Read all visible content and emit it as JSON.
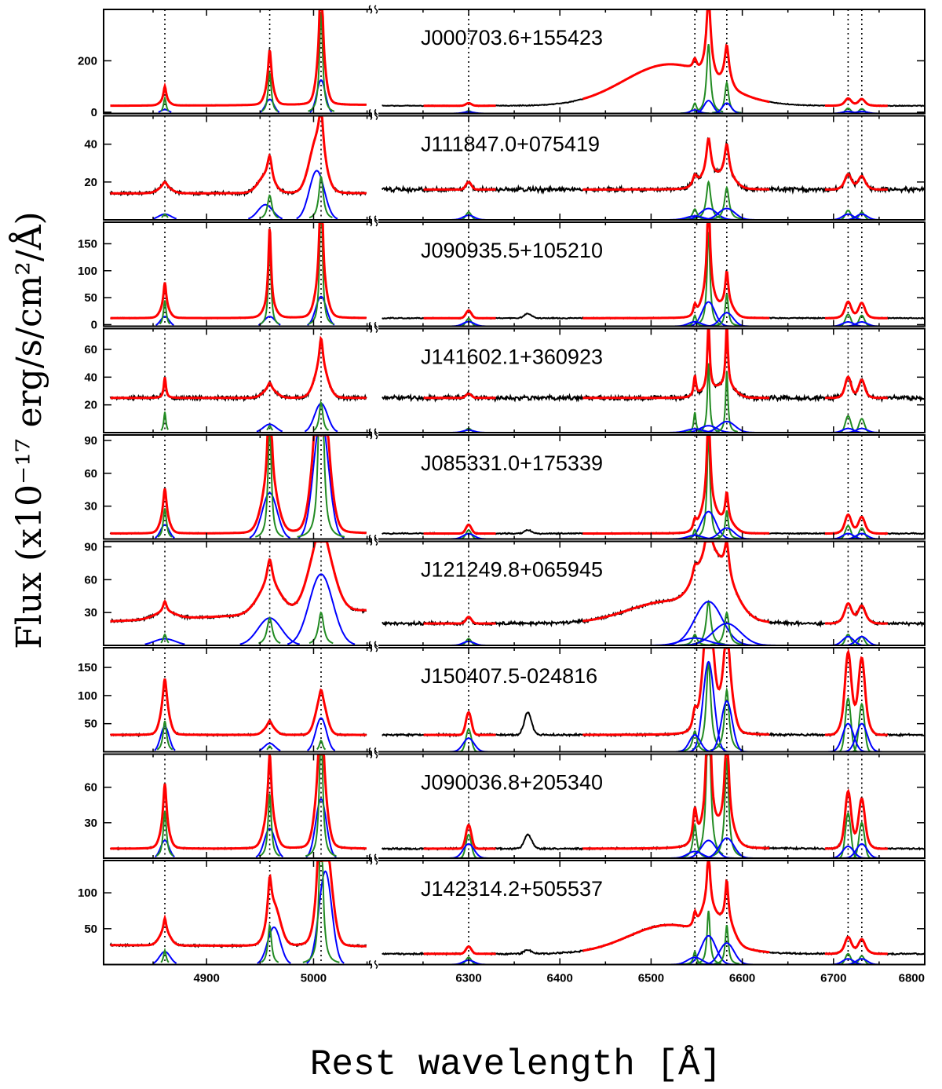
{
  "chart_data": {
    "type": "line",
    "ylabel": "Flux (x10⁻¹⁷ erg/s/cm²/Å)",
    "xlabel": "Rest wavelength [Å]",
    "x_left": {
      "range": [
        4810,
        5050
      ],
      "ticks": [
        4900,
        5000
      ]
    },
    "x_right": {
      "range": [
        6200,
        6800
      ],
      "ticks": [
        6300,
        6400,
        6500,
        6600,
        6700,
        6800
      ]
    },
    "reference_lines": [
      4861,
      4959,
      5007,
      6300,
      6548,
      6583,
      6716,
      6731
    ],
    "series_legend": [
      {
        "name": "observed",
        "color": "#000000"
      },
      {
        "name": "total fit",
        "color": "#ff0000"
      },
      {
        "name": "narrow component",
        "color": "#228b22"
      },
      {
        "name": "broad component",
        "color": "#0000ff"
      }
    ],
    "panels": [
      {
        "name": "J000703.6+155423",
        "ylim": [
          -5,
          400
        ],
        "yticks": [
          0,
          200
        ],
        "cont": [
          25,
          28
        ],
        "hb": [
          60,
          15
        ],
        "o3a": [
          160,
          55
        ],
        "o3b": [
          400,
          130
        ],
        "hbw": [
          1.5,
          4
        ],
        "o3bw": [
          1.8,
          4
        ],
        "o3off": 0,
        "rcont": 25,
        "o1": 10,
        "ha": [
          270,
          50
        ],
        "n2": [
          120,
          40
        ],
        "s2a": [
          20,
          8
        ],
        "s2b": [
          18,
          8
        ],
        "haw": [
          2.5,
          5
        ],
        "xbroad": [
          160,
          50
        ],
        "bump": 0
      },
      {
        "name": "J111847.0+075419",
        "ylim": [
          0,
          55
        ],
        "yticks": [
          20,
          40
        ],
        "cont": [
          14,
          14
        ],
        "hb": [
          3,
          3
        ],
        "o3a": [
          13,
          8
        ],
        "o3b": [
          23,
          26
        ],
        "hbw": [
          2.5,
          6
        ],
        "o3bw": [
          2.5,
          7
        ],
        "o3off": -4,
        "rcont": 16,
        "o1": 4,
        "ha": [
          20,
          6
        ],
        "n2": [
          17,
          6
        ],
        "s2a": [
          5,
          3
        ],
        "s2b": [
          4,
          3
        ],
        "haw": [
          3,
          9
        ],
        "xbroad": [
          0,
          40
        ],
        "bump": 0
      },
      {
        "name": "J090935.5+105210",
        "ylim": [
          -3,
          190
        ],
        "yticks": [
          0,
          50,
          100,
          150
        ],
        "cont": [
          12,
          12
        ],
        "hb": [
          48,
          18
        ],
        "o3a": [
          150,
          18
        ],
        "o3b": [
          260,
          55
        ],
        "hbw": [
          1.5,
          4
        ],
        "o3bw": [
          1.5,
          5
        ],
        "o3off": 0,
        "rcont": 12,
        "o1": 14,
        "ha": [
          175,
          45
        ],
        "n2": [
          60,
          25
        ],
        "s2a": [
          22,
          8
        ],
        "s2b": [
          20,
          8
        ],
        "haw": [
          2,
          7
        ],
        "xbroad": [
          0,
          40
        ],
        "bump": 8
      },
      {
        "name": "J141602.1+360923",
        "ylim": [
          0,
          75
        ],
        "yticks": [
          20,
          40,
          60
        ],
        "cont": [
          25,
          25
        ],
        "hb": [
          15,
          0
        ],
        "o3a": [
          5,
          6
        ],
        "o3b": [
          22,
          21
        ],
        "hbw": [
          1.2,
          5
        ],
        "o3bw": [
          2,
          6
        ],
        "o3off": 0,
        "rcont": 25,
        "o1": 3,
        "ha": [
          50,
          5
        ],
        "n2": [
          44,
          8
        ],
        "s2a": [
          12,
          3
        ],
        "s2b": [
          10,
          3
        ],
        "haw": [
          1.5,
          9
        ],
        "xbroad": [
          0,
          40
        ],
        "bump": 0
      },
      {
        "name": "J085331.0+175339",
        "ylim": [
          0,
          95
        ],
        "yticks": [
          30,
          60,
          90
        ],
        "cont": [
          5,
          5
        ],
        "hb": [
          28,
          13
        ],
        "o3a": [
          110,
          42
        ],
        "o3b": [
          300,
          110
        ],
        "hbw": [
          1.8,
          4
        ],
        "o3bw": [
          1.8,
          7
        ],
        "o3off": 0,
        "rcont": 5,
        "o1": 8,
        "ha": [
          95,
          25
        ],
        "n2": [
          26,
          10
        ],
        "s2a": [
          12,
          5
        ],
        "s2b": [
          10,
          5
        ],
        "haw": [
          2,
          8
        ],
        "xbroad": [
          0,
          40
        ],
        "bump": 3
      },
      {
        "name": "J121249.8+065945",
        "ylim": [
          0,
          95
        ],
        "yticks": [
          30,
          60,
          90
        ],
        "cont": [
          22,
          32
        ],
        "hb": [
          10,
          6
        ],
        "o3a": [
          25,
          25
        ],
        "o3b": [
          30,
          65
        ],
        "hbw": [
          2,
          10
        ],
        "o3bw": [
          3,
          11
        ],
        "o3off": 0,
        "rcont": 20,
        "o1": 6,
        "ha": [
          40,
          40
        ],
        "n2": [
          30,
          20
        ],
        "s2a": [
          10,
          8
        ],
        "s2b": [
          8,
          8
        ],
        "haw": [
          3,
          15
        ],
        "xbroad": [
          20,
          45
        ],
        "bump": 0
      },
      {
        "name": "J150407.5-024816",
        "ylim": [
          0,
          185
        ],
        "yticks": [
          50,
          100,
          150
        ],
        "cont": [
          30,
          30
        ],
        "hb": [
          55,
          45
        ],
        "o3a": [
          10,
          15
        ],
        "o3b": [
          20,
          60
        ],
        "hbw": [
          2,
          4
        ],
        "o3bw": [
          2,
          5
        ],
        "o3off": 0,
        "rcont": 30,
        "o1": 40,
        "ha": [
          160,
          160
        ],
        "n2": [
          110,
          90
        ],
        "s2a": [
          95,
          50
        ],
        "s2b": [
          85,
          50
        ],
        "haw": [
          3,
          6
        ],
        "xbroad": [
          0,
          40
        ],
        "bump": 40
      },
      {
        "name": "J090036.8+205340",
        "ylim": [
          0,
          88
        ],
        "yticks": [
          30,
          60
        ],
        "cont": [
          8,
          8
        ],
        "hb": [
          40,
          15
        ],
        "o3a": [
          55,
          25
        ],
        "o3b": [
          120,
          50
        ],
        "hbw": [
          1.8,
          4
        ],
        "o3bw": [
          1.8,
          5
        ],
        "o3off": 0,
        "rcont": 8,
        "o1": 20,
        "ha": [
          140,
          15
        ],
        "n2": [
          85,
          17
        ],
        "s2a": [
          38,
          10
        ],
        "s2b": [
          30,
          12
        ],
        "haw": [
          2.5,
          8
        ],
        "xbroad": [
          0,
          40
        ],
        "bump": 12
      },
      {
        "name": "J142314.2+505537",
        "ylim": [
          0,
          145
        ],
        "yticks": [
          50,
          100
        ],
        "cont": [
          27,
          25
        ],
        "hb": [
          20,
          18
        ],
        "o3a": [
          55,
          52
        ],
        "o3b": [
          220,
          130
        ],
        "hbw": [
          1.5,
          5
        ],
        "o3bw": [
          2,
          6
        ],
        "o3off": 4,
        "rcont": 15,
        "o1": 10,
        "ha": [
          75,
          40
        ],
        "n2": [
          55,
          30
        ],
        "s2a": [
          15,
          8
        ],
        "s2b": [
          12,
          8
        ],
        "haw": [
          2,
          8
        ],
        "xbroad": [
          40,
          45
        ],
        "bump": 5
      }
    ]
  }
}
